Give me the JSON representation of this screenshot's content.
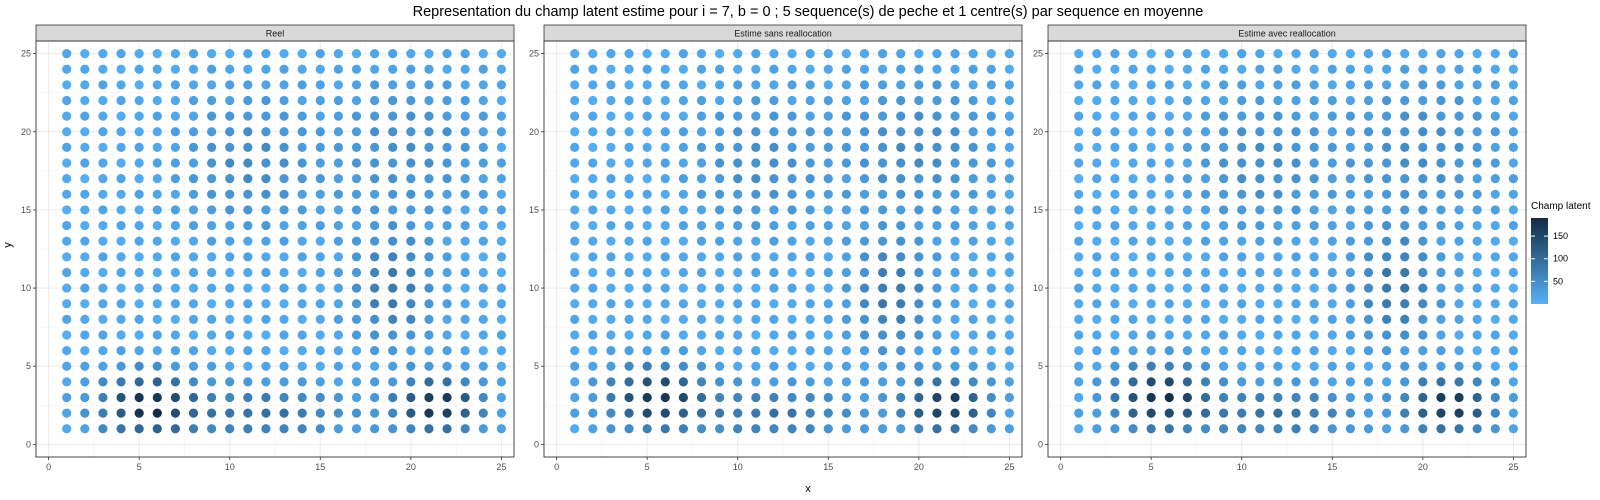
{
  "title": "Representation du champ latent estime pour i = 7, b = 0 ; 5 sequence(s) de peche et 1 centre(s) par sequence en moyenne",
  "xlabel": "x",
  "ylabel": "y",
  "legend": {
    "title": "Champ latent",
    "ticks": [
      50,
      100,
      150
    ],
    "placement": "right"
  },
  "colors": {
    "low": "#56B1F7",
    "high": "#132B43"
  },
  "chart_data": [
    {
      "type": "scatter",
      "panel": "Reel",
      "x": [
        1,
        25
      ],
      "y": [
        1,
        25
      ],
      "xlim": [
        0,
        25
      ],
      "ylim": [
        0,
        25
      ],
      "xticks": [
        0,
        5,
        10,
        15,
        20,
        25
      ],
      "yticks": [
        0,
        5,
        10,
        15,
        20,
        25
      ],
      "grid": true,
      "color_range": [
        0,
        190
      ],
      "hotspots": [
        {
          "x": 5.5,
          "y": 2.5,
          "amp": 175,
          "sx": 1.8,
          "sy": 1.4
        },
        {
          "x": 21.5,
          "y": 2.5,
          "amp": 175,
          "sx": 1.6,
          "sy": 1.2
        },
        {
          "x": 12,
          "y": 2,
          "amp": 80,
          "sx": 3,
          "sy": 1.2
        },
        {
          "x": 19,
          "y": 10,
          "amp": 70,
          "sx": 1.5,
          "sy": 2.5
        },
        {
          "x": 11,
          "y": 18,
          "amp": 40,
          "sx": 2.5,
          "sy": 3
        },
        {
          "x": 20,
          "y": 19,
          "amp": 35,
          "sx": 3,
          "sy": 3
        }
      ]
    },
    {
      "type": "scatter",
      "panel": "Estime sans reallocation",
      "x": [
        1,
        25
      ],
      "y": [
        1,
        25
      ],
      "xlim": [
        0,
        25
      ],
      "ylim": [
        0,
        25
      ],
      "xticks": [
        0,
        5,
        10,
        15,
        20,
        25
      ],
      "yticks": [
        0,
        5,
        10,
        15,
        20,
        25
      ],
      "grid": true,
      "color_range": [
        0,
        190
      ],
      "hotspots": [
        {
          "x": 5.5,
          "y": 3,
          "amp": 165,
          "sx": 1.8,
          "sy": 1.4
        },
        {
          "x": 21.5,
          "y": 2.5,
          "amp": 165,
          "sx": 1.6,
          "sy": 1.2
        },
        {
          "x": 12,
          "y": 2,
          "amp": 75,
          "sx": 3,
          "sy": 1.2
        },
        {
          "x": 18.5,
          "y": 9.5,
          "amp": 70,
          "sx": 1.5,
          "sy": 2.5
        },
        {
          "x": 11,
          "y": 18,
          "amp": 35,
          "sx": 2.5,
          "sy": 3
        },
        {
          "x": 20,
          "y": 19,
          "amp": 40,
          "sx": 3,
          "sy": 3
        }
      ]
    },
    {
      "type": "scatter",
      "panel": "Estime avec reallocation",
      "x": [
        1,
        25
      ],
      "y": [
        1,
        25
      ],
      "xlim": [
        0,
        25
      ],
      "ylim": [
        0,
        25
      ],
      "xticks": [
        0,
        5,
        10,
        15,
        20,
        25
      ],
      "yticks": [
        0,
        5,
        10,
        15,
        20,
        25
      ],
      "grid": true,
      "color_range": [
        0,
        190
      ],
      "hotspots": [
        {
          "x": 5.5,
          "y": 3,
          "amp": 170,
          "sx": 1.8,
          "sy": 1.4
        },
        {
          "x": 21.5,
          "y": 2.5,
          "amp": 170,
          "sx": 1.6,
          "sy": 1.2
        },
        {
          "x": 12,
          "y": 2,
          "amp": 78,
          "sx": 3,
          "sy": 1.2
        },
        {
          "x": 18.5,
          "y": 10,
          "amp": 75,
          "sx": 1.5,
          "sy": 2.5
        },
        {
          "x": 11,
          "y": 18,
          "amp": 38,
          "sx": 2.5,
          "sy": 3
        },
        {
          "x": 20,
          "y": 19,
          "amp": 38,
          "sx": 3,
          "sy": 3
        }
      ]
    }
  ]
}
